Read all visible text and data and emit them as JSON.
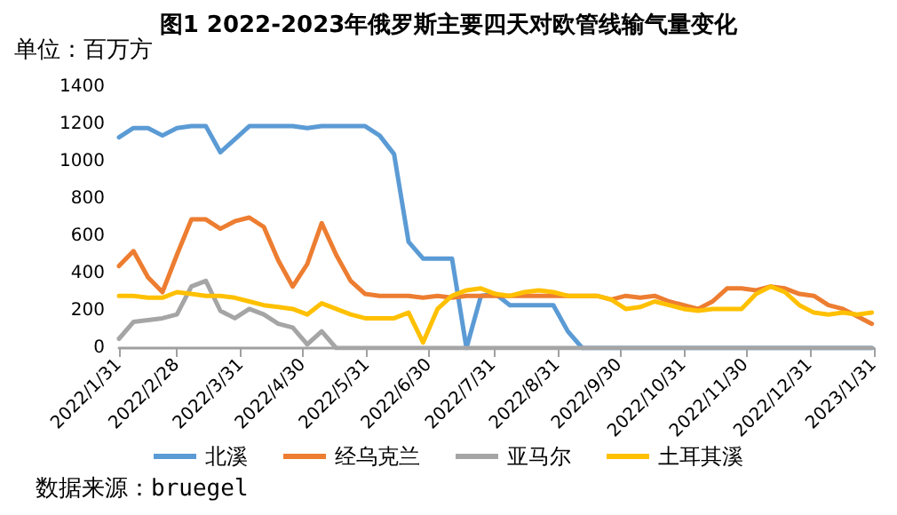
{
  "chart_data": {
    "type": "line",
    "title": "图1 2022-2023年俄罗斯主要四天对欧管线输气量变化",
    "ylabel": "单位：百万方",
    "annotations": [
      "数据来源：bruegel"
    ],
    "x": [
      "2022-01-31",
      "2022-02-07",
      "2022-02-14",
      "2022-02-21",
      "2022-02-28",
      "2022-03-07",
      "2022-03-14",
      "2022-03-21",
      "2022-03-28",
      "2022-04-04",
      "2022-04-11",
      "2022-04-18",
      "2022-04-25",
      "2022-05-02",
      "2022-05-09",
      "2022-05-16",
      "2022-05-23",
      "2022-05-30",
      "2022-06-06",
      "2022-06-13",
      "2022-06-20",
      "2022-06-27",
      "2022-07-04",
      "2022-07-11",
      "2022-07-18",
      "2022-07-25",
      "2022-08-01",
      "2022-08-08",
      "2022-08-15",
      "2022-08-22",
      "2022-08-29",
      "2022-09-05",
      "2022-09-12",
      "2022-09-19",
      "2022-09-26",
      "2022-10-03",
      "2022-10-10",
      "2022-10-17",
      "2022-10-24",
      "2022-10-31",
      "2022-11-07",
      "2022-11-14",
      "2022-11-21",
      "2022-11-28",
      "2022-12-05",
      "2022-12-12",
      "2022-12-19",
      "2022-12-26",
      "2023-01-02",
      "2023-01-09",
      "2023-01-16",
      "2023-01-23",
      "2023-01-30"
    ],
    "series": [
      {
        "name": "北溪",
        "color": "#5b9bd5",
        "values": [
          1130,
          1180,
          1180,
          1140,
          1180,
          1190,
          1190,
          1050,
          1120,
          1190,
          1190,
          1190,
          1190,
          1180,
          1190,
          1190,
          1190,
          1190,
          1140,
          1040,
          570,
          480,
          480,
          480,
          0,
          280,
          290,
          230,
          230,
          230,
          230,
          90,
          0,
          0,
          0,
          0,
          0,
          0,
          0,
          0,
          0,
          0,
          0,
          0,
          0,
          0,
          0,
          0,
          0,
          0,
          0,
          0,
          0
        ]
      },
      {
        "name": "经乌克兰",
        "color": "#ed7d31",
        "values": [
          440,
          520,
          380,
          300,
          500,
          690,
          690,
          640,
          680,
          700,
          650,
          470,
          330,
          450,
          670,
          500,
          360,
          290,
          280,
          280,
          280,
          270,
          280,
          270,
          280,
          280,
          280,
          280,
          280,
          280,
          280,
          280,
          280,
          280,
          260,
          280,
          270,
          280,
          250,
          230,
          210,
          250,
          320,
          320,
          310,
          330,
          320,
          290,
          280,
          230,
          210,
          170,
          130
        ]
      },
      {
        "name": "亚马尔",
        "color": "#a5a5a5",
        "values": [
          50,
          140,
          150,
          160,
          180,
          330,
          360,
          200,
          160,
          210,
          180,
          130,
          110,
          20,
          90,
          0,
          0,
          0,
          0,
          0,
          0,
          0,
          0,
          0,
          0,
          0,
          0,
          0,
          0,
          0,
          0,
          0,
          0,
          0,
          0,
          0,
          0,
          0,
          0,
          0,
          0,
          0,
          0,
          0,
          0,
          0,
          0,
          0,
          0,
          0,
          0,
          0,
          0
        ]
      },
      {
        "name": "土耳其溪",
        "color": "#ffc000",
        "values": [
          280,
          280,
          270,
          270,
          300,
          290,
          280,
          280,
          270,
          250,
          230,
          220,
          210,
          180,
          240,
          210,
          180,
          160,
          160,
          160,
          190,
          30,
          210,
          280,
          310,
          320,
          290,
          280,
          300,
          310,
          300,
          280,
          280,
          280,
          260,
          210,
          220,
          250,
          230,
          210,
          200,
          210,
          210,
          210,
          290,
          330,
          300,
          230,
          190,
          180,
          190,
          180,
          190
        ]
      }
    ],
    "xlim": [
      "2022-01-31",
      "2023-01-31"
    ],
    "xticks": [
      {
        "value": "2022-01-31",
        "label": "2022/1/31"
      },
      {
        "value": "2022-02-28",
        "label": "2022/2/28"
      },
      {
        "value": "2022-03-31",
        "label": "2022/3/31"
      },
      {
        "value": "2022-04-30",
        "label": "2022/4/30"
      },
      {
        "value": "2022-05-31",
        "label": "2022/5/31"
      },
      {
        "value": "2022-06-30",
        "label": "2022/6/30"
      },
      {
        "value": "2022-07-31",
        "label": "2022/7/31"
      },
      {
        "value": "2022-08-31",
        "label": "2022/8/31"
      },
      {
        "value": "2022-09-30",
        "label": "2022/9/30"
      },
      {
        "value": "2022-10-31",
        "label": "2022/10/31"
      },
      {
        "value": "2022-11-30",
        "label": "2022/11/30"
      },
      {
        "value": "2022-12-31",
        "label": "2022/12/31"
      },
      {
        "value": "2023-01-31",
        "label": "2023/1/31"
      }
    ],
    "ylim": [
      0,
      1400
    ],
    "yticks": [
      0,
      200,
      400,
      600,
      800,
      1000,
      1200,
      1400
    ],
    "grid": false,
    "legend": "bottom",
    "marker": "none",
    "line_style": "solid"
  }
}
